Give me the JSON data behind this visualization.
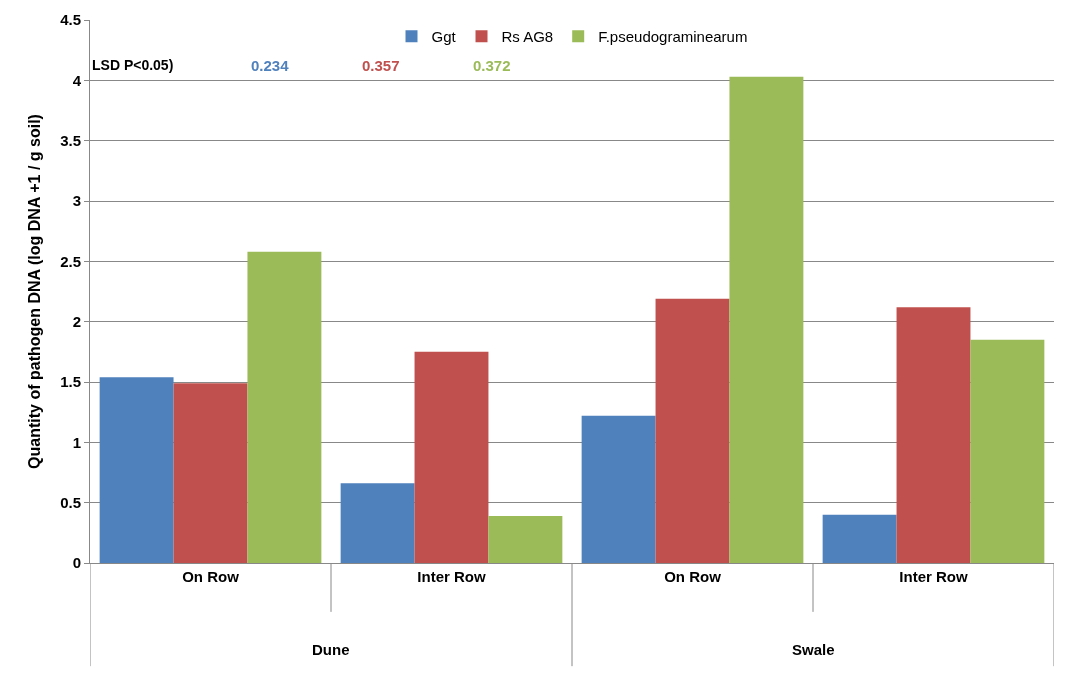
{
  "chart_data": {
    "type": "bar",
    "ylabel": "Quantity of pathogen DNA (log DNA +1 / g soil)",
    "categories": [
      "On Row",
      "Inter Row",
      "On Row",
      "Inter Row"
    ],
    "series": [
      {
        "name": "Ggt",
        "color": "#4f81bd",
        "values": [
          1.54,
          0.66,
          1.22,
          0.4
        ]
      },
      {
        "name": "Rs AG8",
        "color": "#c0504d",
        "values": [
          1.49,
          1.75,
          2.19,
          2.12
        ]
      },
      {
        "name": "F.pseudograminearum",
        "color": "#9bbb59",
        "values": [
          2.58,
          0.39,
          4.03,
          1.85
        ]
      }
    ],
    "annotations": [
      "LSD P<0.05)",
      "0.234",
      "0.357",
      "0.372",
      "Dune",
      "Swale"
    ],
    "ylim": [
      0,
      4.5
    ],
    "yticks": [
      0,
      0.5,
      1,
      1.5,
      2,
      2.5,
      3,
      3.5,
      4,
      4.5
    ],
    "grid": "y",
    "legend": "top"
  }
}
